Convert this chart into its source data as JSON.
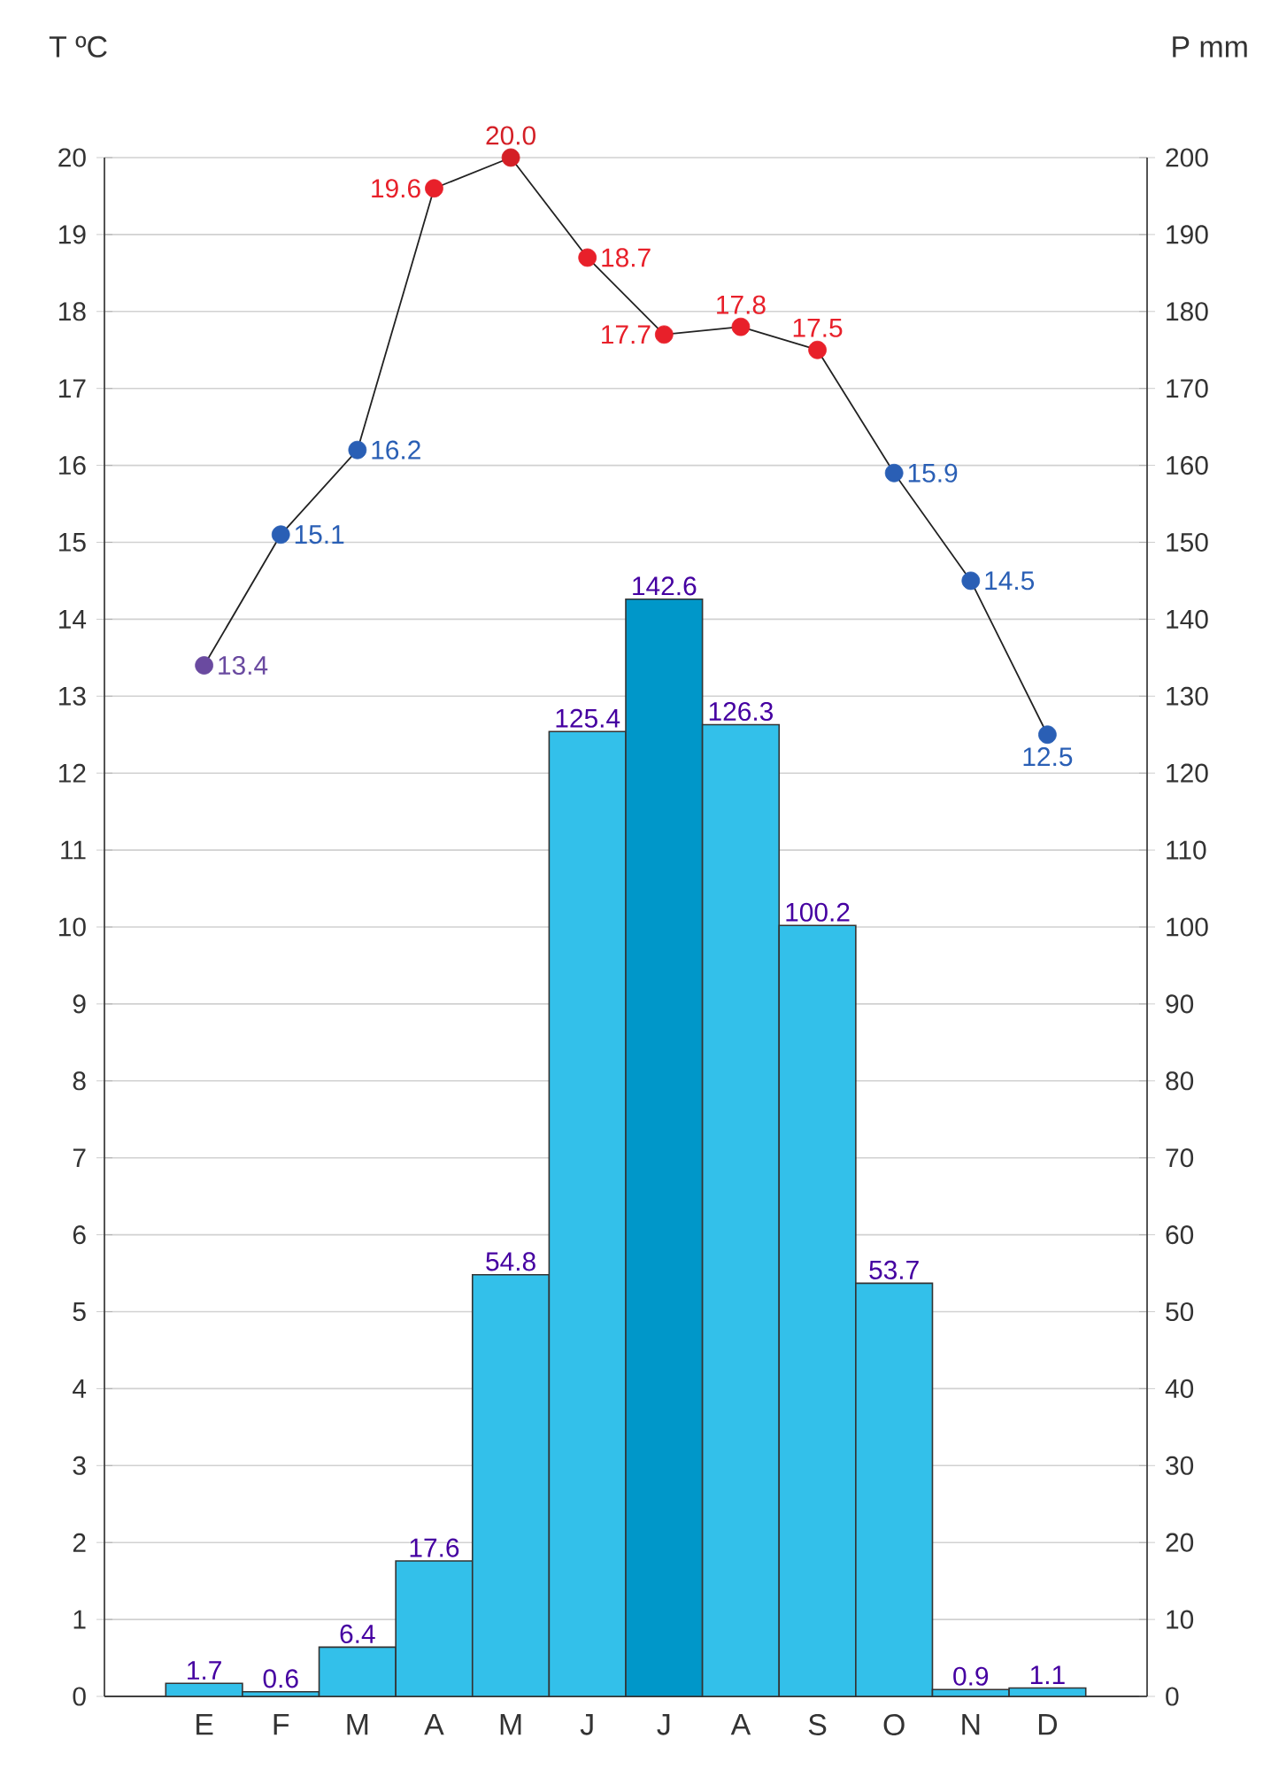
{
  "chart_data": {
    "type": "bar",
    "ylabel": "T ºC",
    "y2label": "P mm",
    "categories": [
      "E",
      "F",
      "M",
      "A",
      "M",
      "J",
      "J",
      "A",
      "S",
      "O",
      "N",
      "D"
    ],
    "ylim": [
      0,
      20
    ],
    "yticks": [
      0,
      1,
      2,
      3,
      4,
      5,
      6,
      7,
      8,
      9,
      10,
      11,
      12,
      13,
      14,
      15,
      16,
      17,
      18,
      19,
      20
    ],
    "y2lim": [
      0,
      200
    ],
    "y2ticks": [
      0,
      10,
      20,
      30,
      40,
      50,
      60,
      70,
      80,
      90,
      100,
      110,
      120,
      130,
      140,
      150,
      160,
      170,
      180,
      190,
      200
    ],
    "grid": "y",
    "marker": "circle",
    "series": [
      {
        "axis": "y2",
        "colors": [
          "#33c0ea",
          "#33c0ea",
          "#33c0ea",
          "#33c0ea",
          "#33c0ea",
          "#33c0ea",
          "#0097c9",
          "#33c0ea",
          "#33c0ea",
          "#33c0ea",
          "#33c0ea",
          "#33c0ea"
        ],
        "values": [
          1.7,
          0.6,
          6.4,
          17.6,
          54.8,
          125.4,
          142.6,
          126.3,
          100.2,
          53.7,
          0.9,
          1.1
        ],
        "value_labels": [
          "1.7",
          "0.6",
          "6.4",
          "17.6",
          "54.8",
          "125.4",
          "142.6",
          "126.3",
          "100.2",
          "53.7",
          "0.9",
          "1.1"
        ]
      },
      {
        "type": "line",
        "axis": "y",
        "color": "#222222",
        "colors": [
          "#6a4aa0",
          "#2a5fb5",
          "#2a5fb5",
          "#e8202a",
          "#d41f26",
          "#e8202a",
          "#e8202a",
          "#e8202a",
          "#e8202a",
          "#2a5fb5",
          "#2a5fb5",
          "#2a5fb5"
        ],
        "values": [
          13.4,
          15.1,
          16.2,
          19.6,
          20.0,
          18.7,
          17.7,
          17.8,
          17.5,
          15.9,
          14.5,
          12.5
        ],
        "value_labels": [
          "13.4",
          "15.1",
          "16.2",
          "19.6",
          "20.0",
          "18.7",
          "17.7",
          "17.8",
          "17.5",
          "15.9",
          "14.5",
          "12.5"
        ]
      }
    ]
  }
}
